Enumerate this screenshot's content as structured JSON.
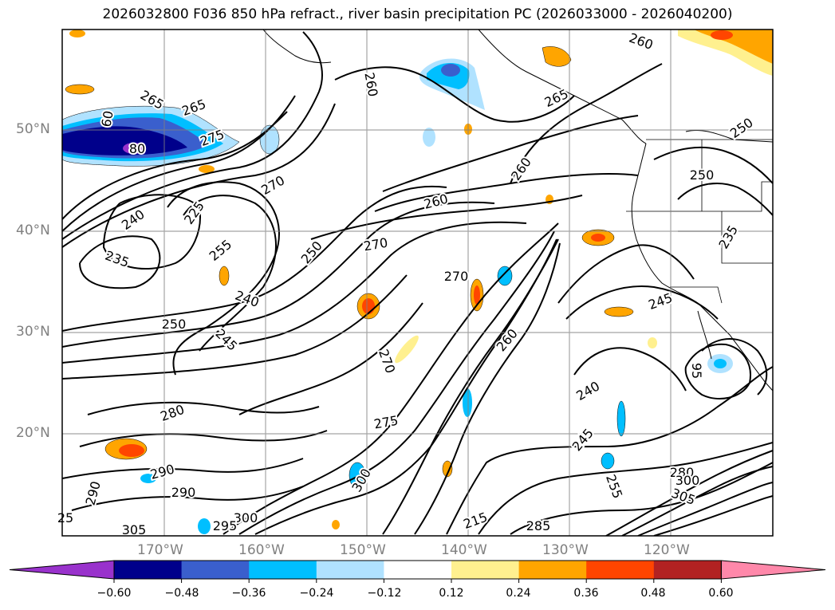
{
  "title": "2026032800 F036 850 hPa refract., river basin precipitation PC (2026033000 - 2026040200)",
  "map": {
    "lat_labels": [
      "50°N",
      "40°N",
      "30°N",
      "20°N"
    ],
    "lon_labels": [
      "170°W",
      "160°W",
      "150°W",
      "140°W",
      "130°W",
      "120°W"
    ],
    "contour_labels": [
      "265",
      "265",
      "275",
      "60",
      "80",
      "270",
      "240",
      "235",
      "225",
      "255",
      "250",
      "245",
      "240",
      "250",
      "280",
      "290",
      "290",
      "290",
      "300",
      "305",
      "295",
      "275",
      "270",
      "300",
      "260",
      "270",
      "260",
      "260",
      "260",
      "265",
      "250",
      "250",
      "235",
      "245",
      "240",
      "245",
      "255",
      "215",
      "285",
      "280",
      "300",
      "305",
      "260",
      "270",
      "25",
      "95"
    ]
  },
  "colorbar": {
    "colors": [
      "#9932cc",
      "#00008b",
      "#3a5fcd",
      "#00bfff",
      "#b0e2ff",
      "#ffffff",
      "#fff08f",
      "#ffa500",
      "#ff4500",
      "#b22222",
      "#ff88aa"
    ],
    "tick_labels": [
      "−0.60",
      "−0.48",
      "−0.36",
      "−0.24",
      "−0.12",
      "0.12",
      "0.24",
      "0.36",
      "0.48",
      "0.60"
    ]
  }
}
